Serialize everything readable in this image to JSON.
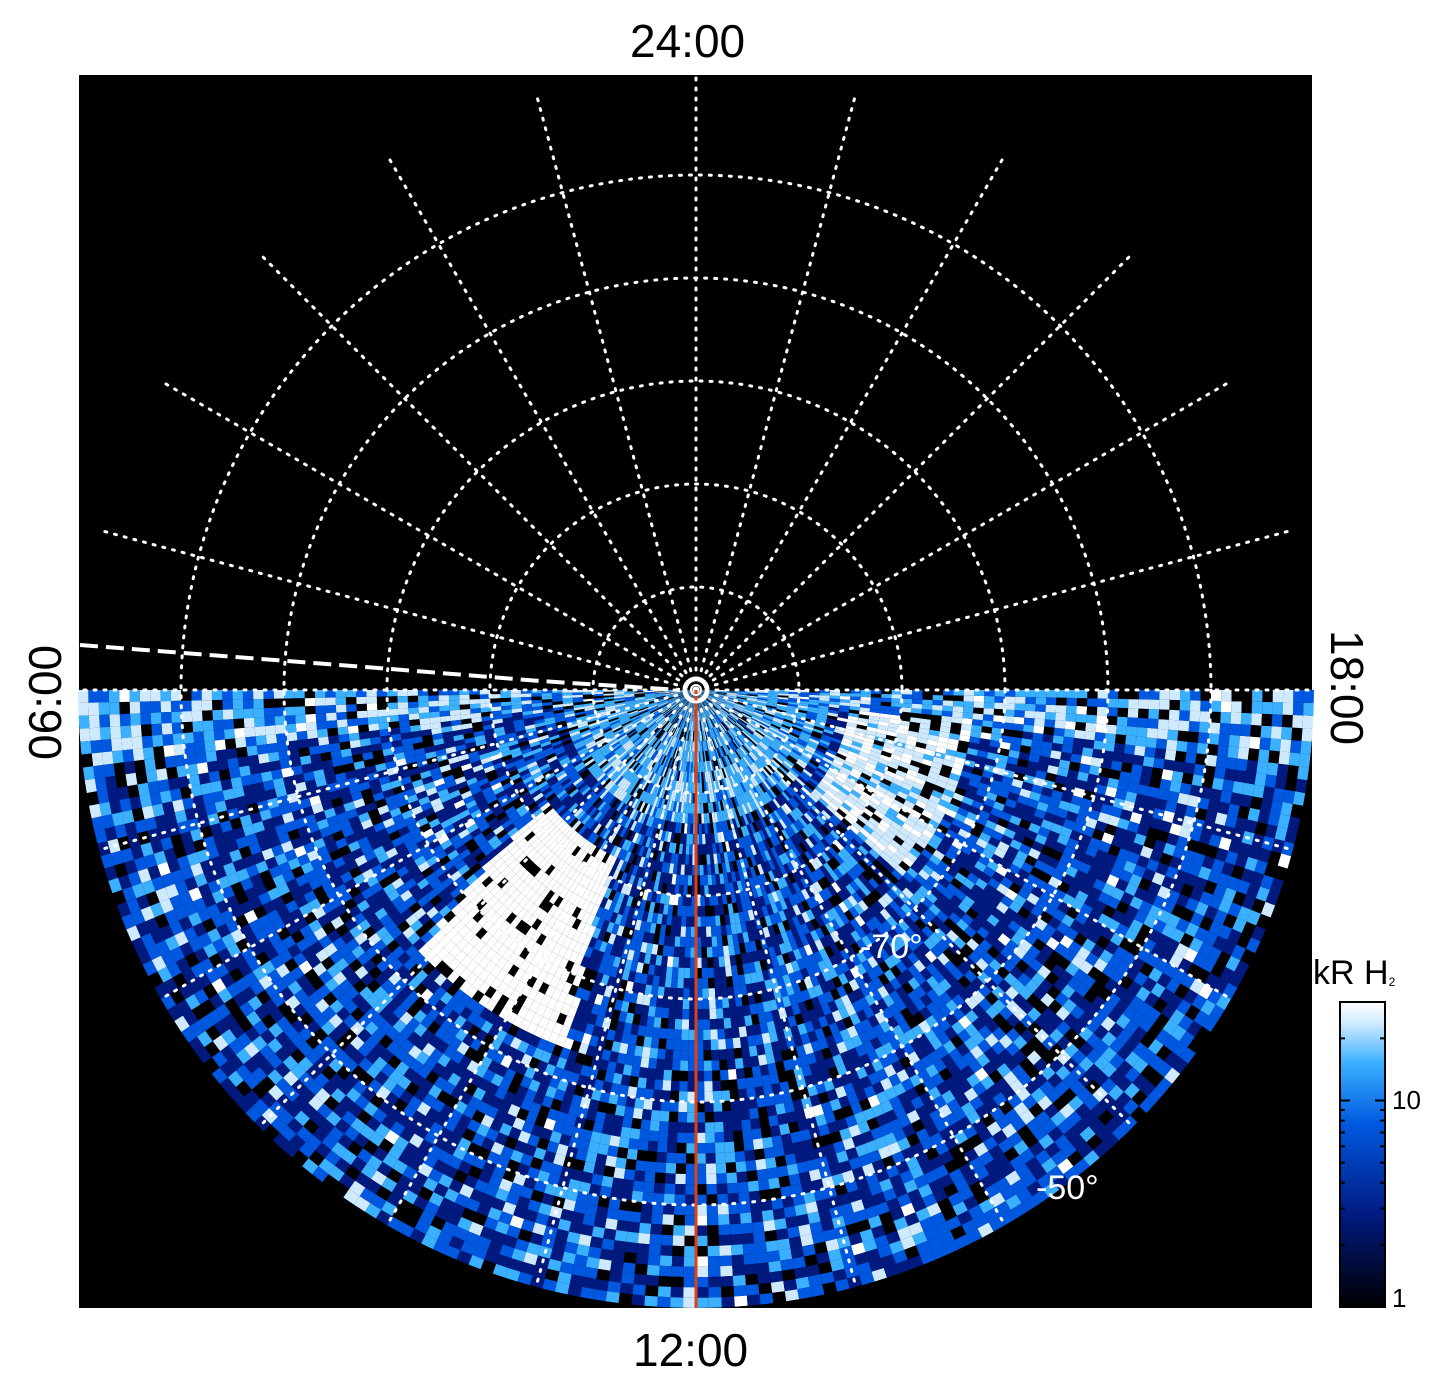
{
  "chart_data": {
    "type": "heatmap",
    "projection": "polar (south pole)",
    "quantity": "auroral H2 emission brightness",
    "local_time_labels": {
      "top": "24:00",
      "bottom": "12:00",
      "left": "06:00",
      "right": "18:00"
    },
    "latitude_labels": [
      "-70°",
      "-50°"
    ],
    "latitude_circles_deg": [
      -80,
      -70,
      -60,
      -50,
      -40
    ],
    "meridian_spacing_hours": 1,
    "coverage": "dayside half only (06:00 through 12:00 to 18:00)",
    "colorbar": {
      "title": "kR H",
      "title_subscript": "2",
      "scale": "log",
      "range": [
        1,
        30
      ],
      "tick_labels": [
        "1",
        "10"
      ],
      "colormap": [
        "#000000",
        "#001a80",
        "#0058e0",
        "#3ab0ff",
        "#cfeaff",
        "#ffffff"
      ]
    },
    "features": [
      {
        "name": "bright dawn auroral patch",
        "local_time_range": [
          "08:00",
          "10:30"
        ],
        "intensity_kR": 30
      },
      {
        "name": "dusk emission band",
        "local_time_range": [
          "15:30",
          "17:30"
        ],
        "intensity_kR": 15
      },
      {
        "name": "noon meridian line",
        "local_time": "12:00",
        "color": "#e04010"
      },
      {
        "name": "dashed boundary",
        "local_time": "06:00",
        "style": "dashed white"
      }
    ],
    "grid": true
  }
}
